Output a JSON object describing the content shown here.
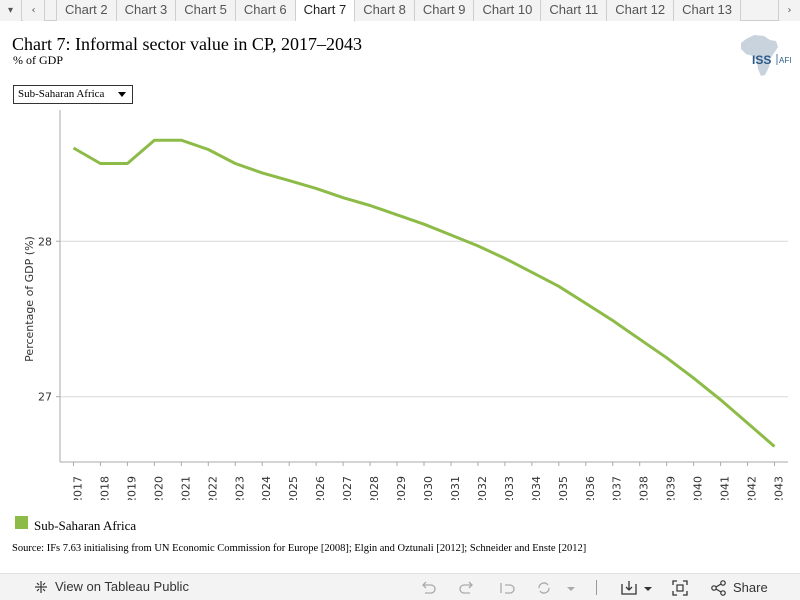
{
  "tabs": {
    "items": [
      "Chart 2",
      "Chart 3",
      "Chart 5",
      "Chart 6",
      "Chart 7",
      "Chart 8",
      "Chart 9",
      "Chart 10",
      "Chart 11",
      "Chart 12",
      "Chart 13"
    ],
    "active_index": 4
  },
  "header": {
    "title": "Chart 7: Informal sector value in CP, 2017–2043",
    "subtitle": "% of GDP",
    "logo_text": "ISS",
    "logo_subtext": "AFI"
  },
  "filter": {
    "selected": "Sub-Saharan Africa"
  },
  "legend": {
    "label": "Sub-Saharan Africa"
  },
  "source": "Source: IFs 7.63 initialising from UN Economic Commission for Europe [2008]; Elgin and Oztunali [2012]; Schneider and Enste [2012]",
  "toolbar": {
    "view_label": "View on Tableau Public",
    "share_label": "Share"
  },
  "colors": {
    "series": "#8dbb48",
    "grid": "#d9d9d9",
    "axis": "#aaaaaa"
  },
  "chart_data": {
    "type": "line",
    "title": "Chart 7: Informal sector value in CP, 2017–2043",
    "subtitle": "% of GDP",
    "xlabel": "",
    "ylabel": "Percentage of GDP (%)",
    "ylim": [
      26.58,
      28.78
    ],
    "yticks": [
      27,
      28
    ],
    "grid": true,
    "x": [
      2017,
      2018,
      2019,
      2020,
      2021,
      2022,
      2023,
      2024,
      2025,
      2026,
      2027,
      2028,
      2029,
      2030,
      2031,
      2032,
      2033,
      2034,
      2035,
      2036,
      2037,
      2038,
      2039,
      2040,
      2041,
      2042,
      2043
    ],
    "series": [
      {
        "name": "Sub-Saharan Africa",
        "values": [
          28.6,
          28.5,
          28.5,
          28.65,
          28.65,
          28.59,
          28.5,
          28.44,
          28.39,
          28.34,
          28.28,
          28.23,
          28.17,
          28.11,
          28.04,
          27.97,
          27.89,
          27.8,
          27.71,
          27.6,
          27.49,
          27.37,
          27.25,
          27.12,
          26.98,
          26.83,
          26.68
        ]
      }
    ]
  }
}
